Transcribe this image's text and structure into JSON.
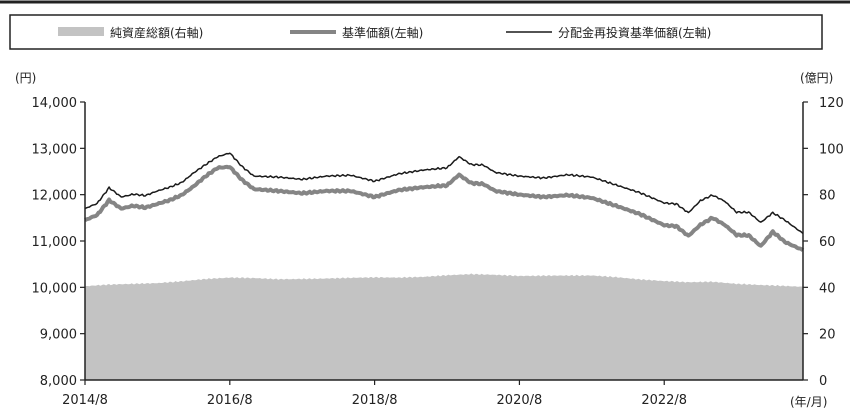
{
  "chart_data": {
    "type": "line",
    "title": "",
    "legend": {
      "placement": "top",
      "entries": [
        {
          "label": "純資産総額(右軸)",
          "kind": "area"
        },
        {
          "label": "基準価額(左軸)",
          "kind": "thick-line"
        },
        {
          "label": "分配金再投資基準価額(左軸)",
          "kind": "thin-line"
        }
      ]
    },
    "left_axis": {
      "unit_label": "(円)",
      "range": [
        8000,
        14000
      ],
      "ticks": [
        8000,
        9000,
        10000,
        11000,
        12000,
        13000,
        14000
      ],
      "tick_labels": [
        "8,000",
        "9,000",
        "10,000",
        "11,000",
        "12,000",
        "13,000",
        "14,000"
      ]
    },
    "right_axis": {
      "unit_label": "(億円)",
      "range": [
        0,
        120
      ],
      "ticks": [
        0,
        20,
        40,
        60,
        80,
        100,
        120
      ],
      "tick_labels": [
        "0",
        "20",
        "40",
        "60",
        "80",
        "100",
        "120"
      ]
    },
    "x_axis": {
      "unit_label": "(年/月)",
      "range": [
        "2014/8",
        "2024/7"
      ],
      "tick_labels": [
        "2014/8",
        "2016/8",
        "2018/8",
        "2020/8",
        "2022/8"
      ]
    },
    "grid": false,
    "colors": {
      "area": "#c3c3c3",
      "nav_line": "#858585",
      "reinvest_line": "#1a1a1a",
      "axis": "#222222"
    },
    "series": [
      {
        "name": "純資産総額(右軸)",
        "axis": "right",
        "x": [
          "2014/8",
          "2014/12",
          "2015/4",
          "2015/8",
          "2015/12",
          "2016/4",
          "2016/8",
          "2016/12",
          "2017/4",
          "2017/8",
          "2017/12",
          "2018/4",
          "2018/8",
          "2018/12",
          "2019/4",
          "2019/8",
          "2019/12",
          "2020/4",
          "2020/8",
          "2020/12",
          "2021/4",
          "2021/8",
          "2021/12",
          "2022/4",
          "2022/8",
          "2022/12",
          "2023/4",
          "2023/8",
          "2023/12",
          "2024/4",
          "2024/7"
        ],
        "values": [
          40.5,
          41.2,
          41.5,
          41.8,
          42.6,
          43.6,
          44.2,
          44.0,
          43.5,
          43.6,
          43.8,
          44.1,
          44.3,
          44.2,
          44.5,
          45.2,
          45.7,
          45.4,
          44.9,
          45.0,
          45.1,
          45.1,
          44.4,
          43.4,
          42.7,
          42.2,
          42.4,
          41.5,
          41.0,
          40.6,
          40.2
        ]
      },
      {
        "name": "基準価額(左軸)",
        "axis": "left",
        "x": [
          "2014/8",
          "2014/10",
          "2014/12",
          "2015/2",
          "2015/4",
          "2015/6",
          "2015/8",
          "2015/10",
          "2015/12",
          "2016/2",
          "2016/4",
          "2016/6",
          "2016/8",
          "2016/10",
          "2016/12",
          "2017/4",
          "2017/8",
          "2017/12",
          "2018/4",
          "2018/8",
          "2018/12",
          "2019/4",
          "2019/8",
          "2019/10",
          "2019/12",
          "2020/2",
          "2020/4",
          "2020/8",
          "2020/12",
          "2021/4",
          "2021/8",
          "2021/12",
          "2022/4",
          "2022/8",
          "2022/10",
          "2022/12",
          "2023/2",
          "2023/4",
          "2023/6",
          "2023/8",
          "2023/10",
          "2023/12",
          "2024/2",
          "2024/4",
          "2024/7"
        ],
        "values": [
          11450,
          11560,
          11880,
          11700,
          11760,
          11720,
          11800,
          11880,
          11990,
          12180,
          12400,
          12580,
          12600,
          12320,
          12120,
          12080,
          12030,
          12080,
          12080,
          11950,
          12100,
          12160,
          12200,
          12430,
          12250,
          12230,
          12080,
          12000,
          11950,
          11990,
          11930,
          11760,
          11580,
          11340,
          11320,
          11110,
          11350,
          11500,
          11350,
          11130,
          11120,
          10890,
          11200,
          10980,
          10800
        ]
      },
      {
        "name": "分配金再投資基準価額(左軸)",
        "axis": "left",
        "x": [
          "2014/8",
          "2014/10",
          "2014/12",
          "2015/2",
          "2015/4",
          "2015/6",
          "2015/8",
          "2015/10",
          "2015/12",
          "2016/2",
          "2016/4",
          "2016/6",
          "2016/8",
          "2016/10",
          "2016/12",
          "2017/4",
          "2017/8",
          "2017/12",
          "2018/4",
          "2018/8",
          "2018/12",
          "2019/4",
          "2019/8",
          "2019/10",
          "2019/12",
          "2020/2",
          "2020/4",
          "2020/8",
          "2020/12",
          "2021/4",
          "2021/8",
          "2021/12",
          "2022/4",
          "2022/8",
          "2022/10",
          "2022/12",
          "2023/2",
          "2023/4",
          "2023/6",
          "2023/8",
          "2023/10",
          "2023/12",
          "2024/2",
          "2024/4",
          "2024/7"
        ],
        "values": [
          11700,
          11810,
          12150,
          11950,
          12010,
          11980,
          12080,
          12160,
          12260,
          12470,
          12650,
          12820,
          12900,
          12610,
          12400,
          12380,
          12330,
          12400,
          12420,
          12290,
          12450,
          12530,
          12580,
          12820,
          12650,
          12640,
          12480,
          12400,
          12360,
          12430,
          12380,
          12210,
          12040,
          11820,
          11800,
          11610,
          11870,
          11990,
          11860,
          11620,
          11620,
          11400,
          11610,
          11450,
          11160
        ]
      }
    ]
  }
}
